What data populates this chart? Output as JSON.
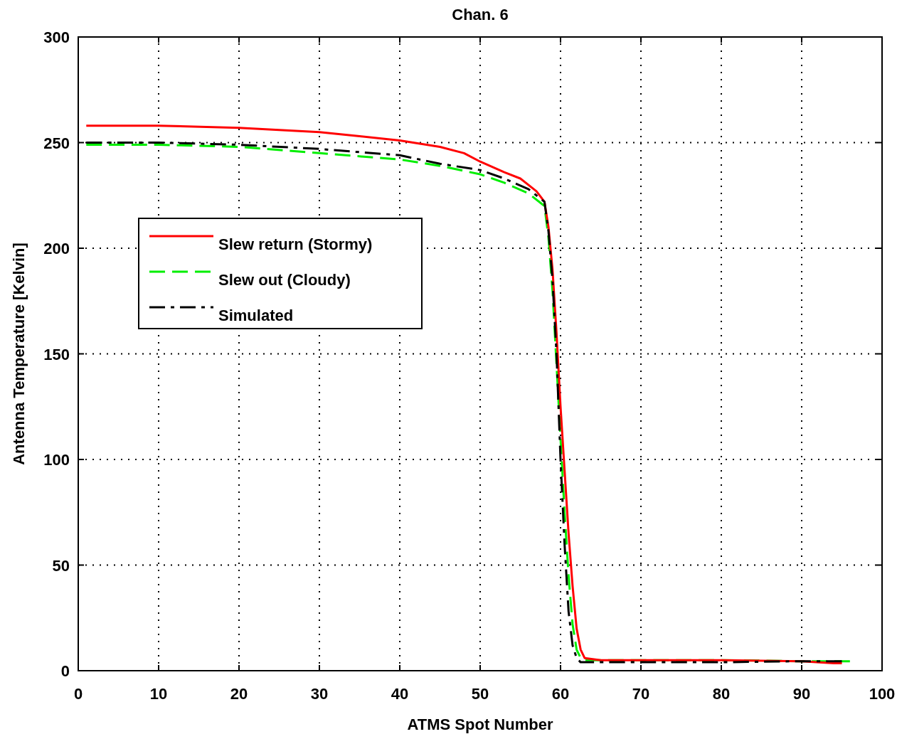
{
  "chart_data": {
    "type": "line",
    "title": "Chan. 6",
    "xlabel": "ATMS Spot Number",
    "ylabel": "Antenna Temperature [Kelvin]",
    "xlim": [
      0,
      100
    ],
    "xticks": [
      0,
      10,
      20,
      30,
      40,
      50,
      60,
      70,
      80,
      90,
      100
    ],
    "ylim": [
      0,
      300
    ],
    "yticks": [
      0,
      50,
      100,
      150,
      200,
      250,
      300
    ],
    "grid": true,
    "legend": "top left",
    "series": [
      {
        "name": "Slew return (Stormy)",
        "color": "#ff0000",
        "line_style": "solid",
        "x": [
          1,
          10,
          20,
          25,
          30,
          35,
          40,
          45,
          48,
          50,
          53,
          55,
          57,
          58,
          58.5,
          59,
          59.5,
          60,
          60.5,
          61,
          61.5,
          62,
          62.5,
          63,
          65,
          70,
          80,
          90,
          94,
          95
        ],
        "values": [
          258,
          258,
          257,
          256,
          255,
          253,
          251,
          248,
          245,
          241,
          236,
          233,
          227,
          222,
          210,
          190,
          160,
          125,
          95,
          65,
          40,
          20,
          10,
          6,
          5,
          5,
          5,
          4.5,
          3.5,
          3.5
        ]
      },
      {
        "name": "Slew out (Cloudy)",
        "color": "#00ee00",
        "line_style": "dashed",
        "x": [
          1,
          10,
          20,
          30,
          40,
          45,
          50,
          53,
          56,
          58,
          58.5,
          59,
          59.5,
          60,
          60.5,
          61,
          61.5,
          62,
          62.5,
          63,
          65,
          70,
          80,
          90,
          96
        ],
        "values": [
          249,
          249,
          248,
          245,
          242,
          239,
          235,
          231,
          226,
          220,
          205,
          180,
          145,
          110,
          75,
          45,
          22,
          10,
          6,
          5,
          5,
          5,
          5,
          4.5,
          4.5
        ]
      },
      {
        "name": "Simulated",
        "color": "#000000",
        "line_style": "dashdot",
        "x": [
          1,
          10,
          20,
          30,
          40,
          45,
          50,
          53,
          56,
          58,
          58.5,
          59,
          59.5,
          60,
          60.5,
          61,
          61.5,
          62,
          62.5,
          63,
          65,
          70,
          80,
          90,
          95
        ],
        "values": [
          250,
          250,
          249,
          247,
          244,
          240,
          237,
          233,
          228,
          222,
          208,
          185,
          150,
          100,
          60,
          28,
          12,
          6,
          4,
          4,
          4,
          4,
          4,
          4.5,
          4.5
        ]
      }
    ]
  }
}
